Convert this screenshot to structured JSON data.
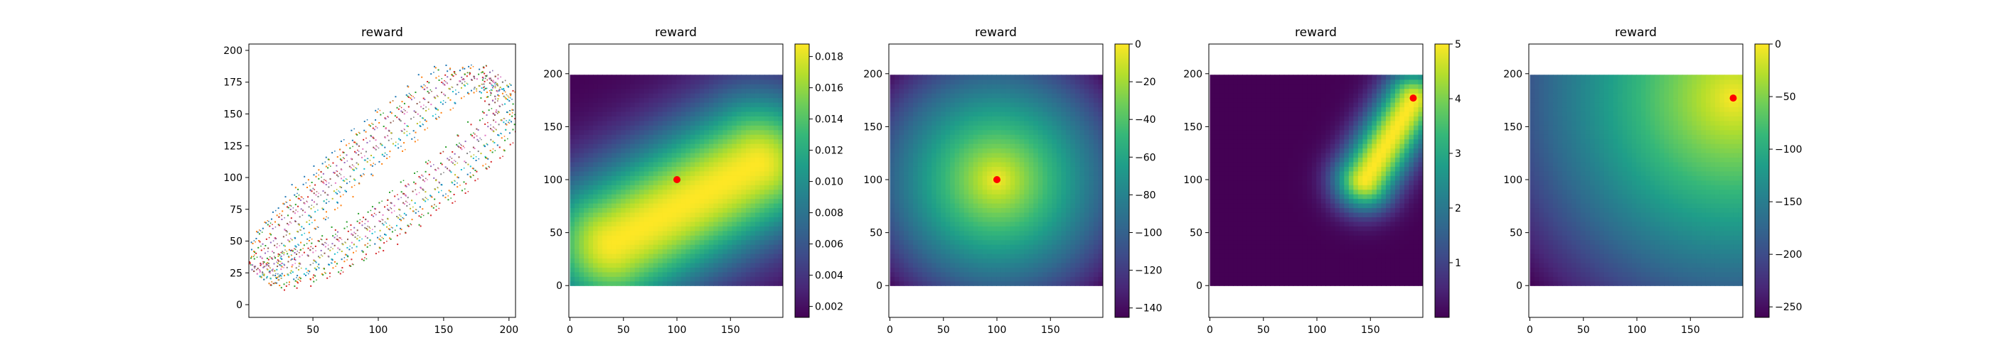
{
  "chart_data": [
    {
      "type": "scatter",
      "title": "reward",
      "xlabel": "",
      "ylabel": "",
      "xlim": [
        1,
        205
      ],
      "ylim": [
        -10,
        205
      ],
      "xticks": [
        50,
        100,
        150,
        200
      ],
      "yticks": [
        0,
        25,
        50,
        75,
        100,
        125,
        150,
        175,
        200
      ],
      "grid": false,
      "series_colors": [
        "#1f77b4",
        "#ff7f0e",
        "#2ca02c",
        "#d62728",
        "#9467bd",
        "#8c564b",
        "#e377c2",
        "#7f7f7f",
        "#bcbd22",
        "#17becf"
      ],
      "trajectory_groups": [
        {
          "name": "",
          "start": [
            10,
            22
          ],
          "end": [
            195,
            175
          ],
          "route": "upper",
          "count": 12
        },
        {
          "name": "",
          "start": [
            10,
            22
          ],
          "end": [
            195,
            175
          ],
          "route": "lower",
          "count": 12
        }
      ]
    },
    {
      "type": "heatmap",
      "title": "reward",
      "xlim": [
        -1,
        199
      ],
      "ylim": [
        -30,
        228
      ],
      "grid_extent": [
        0,
        199
      ],
      "xticks": [
        0,
        50,
        100,
        150
      ],
      "yticks": [
        0,
        50,
        100,
        150,
        200
      ],
      "colorbar": {
        "min": 0.0013,
        "max": 0.0188,
        "ticks": [
          0.002,
          0.004,
          0.006,
          0.008,
          0.01,
          0.012,
          0.014,
          0.016,
          0.018
        ],
        "tick_labels": [
          "0.002",
          "0.004",
          "0.006",
          "0.008",
          "0.010",
          "0.012",
          "0.014",
          "0.016",
          "0.018"
        ]
      },
      "colormap": "viridis",
      "field": {
        "kind": "gaussian_line",
        "from": [
          40,
          40
        ],
        "to": [
          175,
          115
        ],
        "sigma": 48,
        "peak": 0.0188,
        "base": 0.0013
      },
      "goal_marker": {
        "x": 100,
        "y": 100,
        "color": "#ff0000"
      }
    },
    {
      "type": "heatmap",
      "title": "reward",
      "xlim": [
        -1,
        199
      ],
      "ylim": [
        -30,
        228
      ],
      "grid_extent": [
        0,
        199
      ],
      "xticks": [
        0,
        50,
        100,
        150
      ],
      "yticks": [
        0,
        50,
        100,
        150,
        200
      ],
      "colorbar": {
        "min": -145,
        "max": 0,
        "ticks": [
          0,
          -20,
          -40,
          -60,
          -80,
          -100,
          -120,
          -140
        ],
        "tick_labels": [
          "0",
          "−20",
          "−40",
          "−60",
          "−80",
          "−100",
          "−120",
          "−140"
        ]
      },
      "colormap": "viridis",
      "field": {
        "kind": "neg_distance",
        "center": [
          100,
          100
        ],
        "scale": 1.0
      },
      "goal_marker": {
        "x": 100,
        "y": 100,
        "color": "#ff0000"
      }
    },
    {
      "type": "heatmap",
      "title": "reward",
      "xlim": [
        -1,
        199
      ],
      "ylim": [
        -30,
        228
      ],
      "grid_extent": [
        0,
        199
      ],
      "xticks": [
        0,
        50,
        100,
        150
      ],
      "yticks": [
        0,
        50,
        100,
        150,
        200
      ],
      "colorbar": {
        "min": 0,
        "max": 5,
        "ticks": [
          1,
          2,
          3,
          4,
          5
        ],
        "tick_labels": [
          "1",
          "2",
          "3",
          "4",
          "5"
        ]
      },
      "colormap": "viridis",
      "field": {
        "kind": "gaussian_line",
        "from": [
          145,
          100
        ],
        "to": [
          190,
          175
        ],
        "sigma": 20,
        "peak": 5,
        "base": 0
      },
      "goal_marker": {
        "x": 190,
        "y": 177,
        "color": "#ff0000"
      }
    },
    {
      "type": "heatmap",
      "title": "reward",
      "xlim": [
        -1,
        199
      ],
      "ylim": [
        -30,
        228
      ],
      "grid_extent": [
        0,
        199
      ],
      "xticks": [
        0,
        50,
        100,
        150
      ],
      "yticks": [
        0,
        50,
        100,
        150,
        200
      ],
      "colorbar": {
        "min": -260,
        "max": 0,
        "ticks": [
          0,
          -50,
          -100,
          -150,
          -200,
          -250
        ],
        "tick_labels": [
          "0",
          "−50",
          "−100",
          "−150",
          "−200",
          "−250"
        ]
      },
      "colormap": "viridis",
      "field": {
        "kind": "neg_distance",
        "center": [
          190,
          177
        ],
        "scale": 1.0
      },
      "goal_marker": {
        "x": 190,
        "y": 177,
        "color": "#ff0000"
      }
    }
  ]
}
